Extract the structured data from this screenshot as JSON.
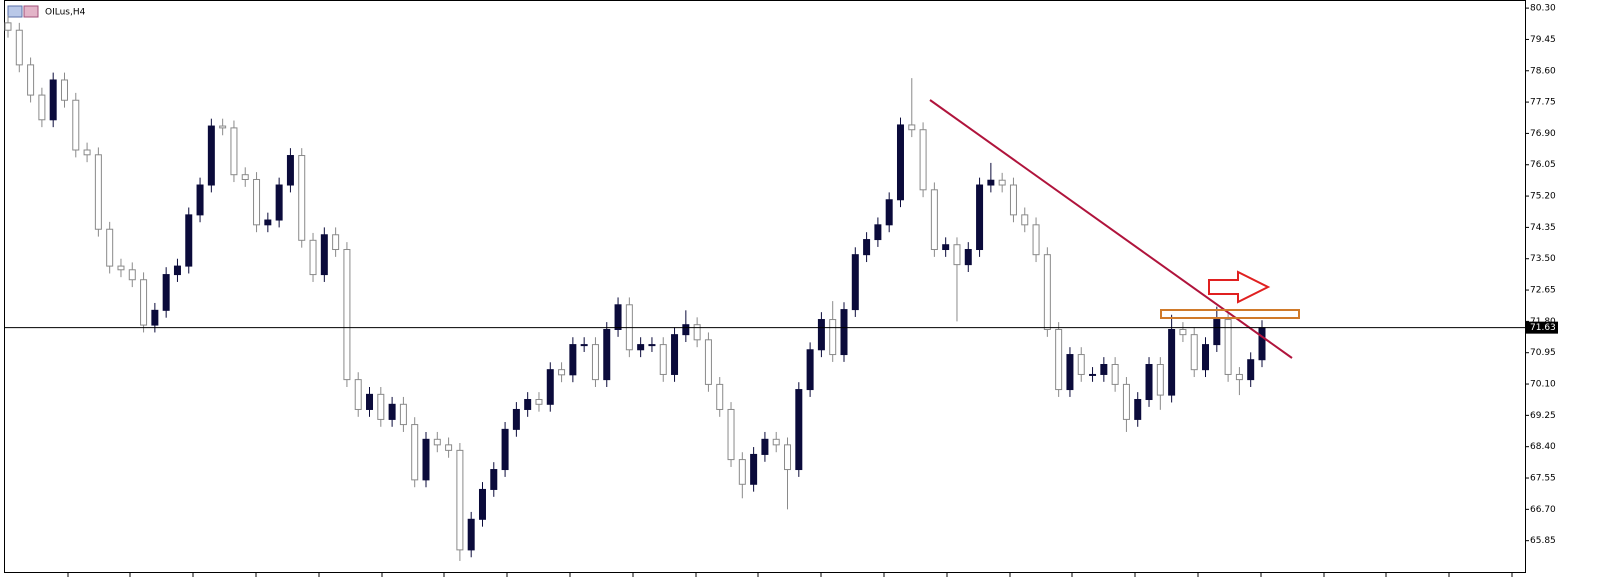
{
  "chart_data": {
    "type": "candlestick",
    "title": "OILus,H4",
    "open": [
      79.9,
      79.7,
      78.76,
      77.94,
      77.27,
      78.35,
      77.8,
      76.45,
      76.32,
      74.3,
      73.3,
      73.2,
      72.93,
      71.7,
      72.1,
      73.07,
      73.3,
      74.69,
      75.5,
      77.1,
      77.05,
      75.78,
      75.65,
      74.42,
      74.55,
      75.5,
      76.3,
      74.0,
      73.07,
      74.15,
      73.75,
      70.22,
      69.41,
      69.82,
      69.14,
      69.55,
      69.0,
      67.5,
      68.6,
      68.45,
      68.3,
      65.6,
      66.43,
      67.24,
      67.78,
      68.87,
      69.41,
      69.68,
      69.55,
      70.49,
      70.35,
      71.17,
      71.17,
      70.22,
      71.58,
      72.25,
      71.03,
      71.17,
      71.17,
      70.36,
      71.44,
      71.71,
      71.3,
      70.09,
      69.41,
      68.05,
      67.38,
      68.19,
      68.6,
      68.45,
      67.78,
      69.95,
      71.03,
      71.85,
      70.9,
      72.12,
      73.61,
      74.02,
      74.42,
      75.1,
      77.13,
      77.0,
      75.37,
      73.75,
      73.88,
      73.34,
      73.75,
      75.5,
      75.63,
      75.5,
      74.69,
      74.42,
      73.61,
      71.58,
      69.95,
      70.9,
      70.36,
      70.36,
      70.63,
      70.09,
      69.14,
      69.68,
      70.63,
      69.8,
      71.58,
      71.44,
      70.49,
      71.17,
      71.85,
      70.36,
      70.22,
      70.76
    ],
    "high": [
      80.1,
      79.9,
      78.96,
      78.14,
      78.55,
      78.55,
      78.0,
      76.65,
      76.52,
      74.5,
      73.5,
      73.4,
      73.13,
      72.3,
      73.27,
      73.5,
      74.89,
      75.7,
      77.3,
      77.3,
      77.25,
      75.98,
      75.85,
      74.75,
      75.7,
      76.5,
      76.5,
      74.2,
      74.35,
      74.35,
      73.95,
      70.42,
      70.02,
      70.02,
      69.75,
      69.75,
      69.2,
      68.8,
      68.8,
      68.65,
      68.5,
      66.63,
      67.44,
      67.98,
      69.07,
      69.61,
      69.88,
      69.88,
      70.69,
      70.69,
      71.37,
      71.37,
      71.37,
      71.78,
      72.45,
      72.45,
      71.37,
      71.37,
      71.37,
      71.64,
      72.1,
      71.91,
      71.5,
      70.29,
      69.61,
      68.25,
      68.39,
      68.8,
      68.8,
      68.65,
      70.15,
      71.23,
      72.05,
      72.35,
      72.32,
      73.81,
      74.22,
      74.62,
      75.3,
      77.33,
      78.4,
      77.2,
      75.57,
      74.08,
      74.08,
      73.95,
      75.7,
      76.1,
      75.83,
      75.7,
      74.89,
      74.62,
      73.81,
      71.78,
      71.1,
      71.1,
      70.56,
      70.83,
      70.83,
      70.29,
      69.88,
      70.83,
      70.83,
      71.98,
      71.78,
      71.64,
      71.37,
      72.2,
      72.05,
      70.56,
      70.96,
      71.83
    ],
    "low": [
      79.5,
      78.56,
      77.74,
      77.07,
      77.07,
      77.6,
      76.25,
      76.12,
      74.1,
      73.1,
      73.0,
      72.73,
      71.5,
      71.5,
      71.9,
      72.87,
      73.1,
      74.49,
      75.3,
      76.85,
      75.58,
      75.45,
      74.22,
      74.22,
      74.35,
      75.3,
      73.8,
      72.87,
      72.87,
      73.55,
      70.02,
      69.21,
      69.21,
      68.94,
      68.94,
      68.8,
      67.3,
      67.3,
      68.25,
      68.1,
      65.3,
      65.4,
      66.23,
      67.04,
      67.58,
      68.67,
      69.21,
      69.35,
      69.35,
      70.15,
      70.15,
      70.97,
      70.02,
      70.02,
      71.38,
      70.83,
      70.83,
      70.97,
      70.16,
      70.16,
      71.24,
      71.1,
      69.89,
      69.21,
      67.85,
      67.0,
      67.18,
      67.99,
      68.25,
      66.7,
      67.58,
      69.75,
      70.83,
      70.7,
      70.7,
      71.92,
      73.41,
      73.82,
      74.22,
      74.9,
      76.8,
      75.17,
      73.55,
      73.55,
      71.8,
      73.14,
      73.55,
      75.3,
      75.3,
      74.49,
      74.22,
      73.41,
      71.38,
      69.75,
      69.75,
      70.16,
      70.16,
      70.16,
      69.89,
      68.8,
      68.94,
      69.48,
      69.4,
      69.6,
      71.24,
      70.29,
      70.29,
      70.97,
      70.16,
      69.8,
      70.02,
      70.56
    ],
    "close": [
      79.7,
      78.76,
      77.94,
      77.27,
      78.35,
      77.8,
      76.45,
      76.32,
      74.3,
      73.3,
      73.2,
      72.93,
      71.7,
      72.1,
      73.07,
      73.3,
      74.69,
      75.5,
      77.1,
      77.05,
      75.78,
      75.65,
      74.42,
      74.55,
      75.5,
      76.3,
      74.0,
      73.07,
      74.15,
      73.75,
      70.22,
      69.41,
      69.82,
      69.14,
      69.55,
      69.0,
      67.5,
      68.6,
      68.45,
      68.3,
      65.6,
      66.43,
      67.24,
      67.78,
      68.87,
      69.41,
      69.68,
      69.55,
      70.49,
      70.35,
      71.17,
      71.17,
      70.22,
      71.58,
      72.25,
      71.03,
      71.17,
      71.17,
      70.36,
      71.44,
      71.71,
      71.3,
      70.09,
      69.41,
      68.05,
      67.38,
      68.19,
      68.6,
      68.45,
      67.78,
      69.95,
      71.03,
      71.85,
      70.9,
      72.12,
      73.61,
      74.02,
      74.42,
      75.1,
      77.13,
      77.0,
      75.37,
      73.75,
      73.88,
      73.34,
      73.75,
      75.5,
      75.63,
      75.5,
      74.69,
      74.42,
      73.61,
      71.58,
      69.95,
      70.9,
      70.36,
      70.36,
      70.63,
      70.09,
      69.14,
      69.68,
      70.63,
      69.8,
      71.58,
      71.44,
      70.49,
      71.17,
      71.85,
      70.36,
      70.22,
      70.76,
      71.63
    ],
    "up_color": "#0b0b3b",
    "down_color": "#ffffff",
    "wick_color": "#8a8a8a",
    "current_price": 71.63,
    "ylim": [
      65.0,
      80.52
    ],
    "yticks": [
      {
        "value": 80.3,
        "label": "80.30"
      },
      {
        "value": 79.45,
        "label": "79.45"
      },
      {
        "value": 78.6,
        "label": "78.60"
      },
      {
        "value": 77.75,
        "label": "77.75"
      },
      {
        "value": 76.9,
        "label": "76.90"
      },
      {
        "value": 76.05,
        "label": "76.05"
      },
      {
        "value": 75.2,
        "label": "75.20"
      },
      {
        "value": 74.35,
        "label": "74.35"
      },
      {
        "value": 73.5,
        "label": "73.50"
      },
      {
        "value": 72.65,
        "label": "72.65"
      },
      {
        "value": 71.8,
        "label": "71.80"
      },
      {
        "value": 70.95,
        "label": "70.95"
      },
      {
        "value": 70.1,
        "label": "70.10"
      },
      {
        "value": 69.25,
        "label": "69.25"
      },
      {
        "value": 68.4,
        "label": "68.40"
      },
      {
        "value": 67.55,
        "label": "67.55"
      },
      {
        "value": 66.7,
        "label": "66.70"
      },
      {
        "value": 65.85,
        "label": "65.85"
      }
    ],
    "grid": false
  }
}
